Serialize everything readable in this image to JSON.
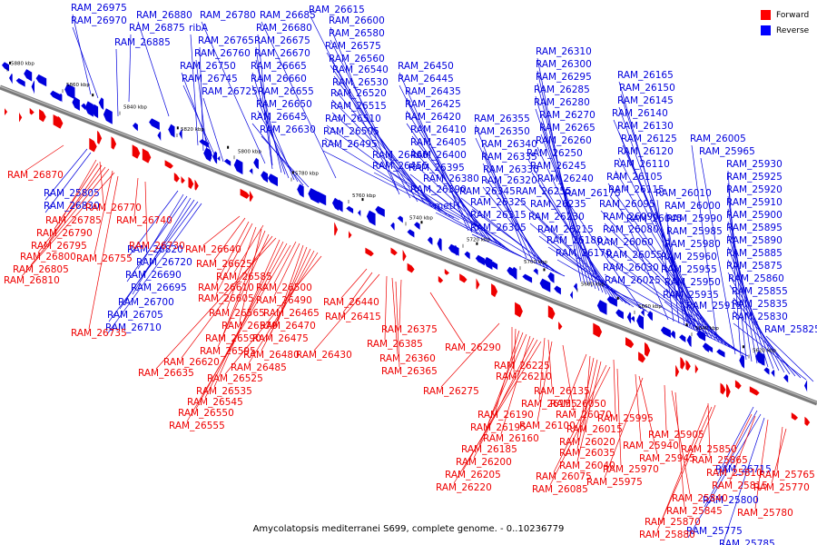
{
  "caption": "Amycolatopsis mediterranei S699, complete genome. - 0..10236779",
  "legend": [
    {
      "label": "Forward",
      "color": "#ff0000"
    },
    {
      "label": "Reverse",
      "color": "#0000ff"
    }
  ],
  "colors": {
    "forward": "#ee0000",
    "reverse": "#0000dd",
    "axis": "#7a7a7a"
  },
  "ticks": [
    "5880 kbp",
    "5860 kbp",
    "5840 kbp",
    "5820 kbp",
    "5800 kbp",
    "5780 kbp",
    "5760 kbp",
    "5740 kbp",
    "5720 kbp",
    "5700 kbp",
    "5680 kbp",
    "5660 kbp",
    "5640 kbp",
    "5620 kbp"
  ],
  "reverse_labels": [
    "RAM_26975",
    "RAM_26970",
    "RAM_26880",
    "RAM_26780",
    "RAM_26685",
    "RAM_26615",
    "RAM_26875",
    "ribA",
    "RAM_26600",
    "RAM_26680",
    "RAM_26580",
    "RAM_26885",
    "RAM_26765",
    "RAM_26675",
    "RAM_26575",
    "RAM_26760",
    "RAM_26670",
    "RAM_26560",
    "RAM_26750",
    "RAM_26665",
    "RAM_26540",
    "RAM_26450",
    "RAM_26745",
    "RAM_26660",
    "RAM_26530",
    "RAM_26445",
    "RAM_26725",
    "RAM_26655",
    "RAM_26520",
    "RAM_26435",
    "RAM_26650",
    "RAM_26515",
    "RAM_26425",
    "RAM_26645",
    "RAM_26510",
    "RAM_26420",
    "RAM_26630",
    "RAM_26505",
    "RAM_26410",
    "RAM_26495",
    "RAM_26405",
    "RAM_26460",
    "RAM_26400",
    "RAM_26455",
    "RAM_26395",
    "RAM_26380",
    "RAM_26390",
    "metH",
    "RAM_26310",
    "RAM_26300",
    "RAM_26295",
    "RAM_26285",
    "RAM_26280",
    "RAM_26270",
    "RAM_26355",
    "RAM_26265",
    "RAM_26350",
    "RAM_26260",
    "RAM_26340",
    "RAM_26250",
    "RAM_26335",
    "RAM_26245",
    "RAM_26330",
    "RAM_26240",
    "RAM_26320",
    "RAM_26175",
    "RAM_26345",
    "RAM_26255",
    "RAM_26325",
    "RAM_26235",
    "RAM_26315",
    "RAM_26230",
    "RAM_26305",
    "RAM_26215",
    "RAM_26180",
    "RAM_26170",
    "RAM_26165",
    "RAM_26150",
    "RAM_26145",
    "RAM_26140",
    "RAM_26130",
    "RAM_26125",
    "RAM_26120",
    "RAM_26110",
    "RAM_26105",
    "RAM_26115",
    "RAM_26095",
    "RAM_26090",
    "RAM_26080",
    "RAM_26060",
    "RAM_26055",
    "RAM_26030",
    "RAM_26025",
    "RAM_26045",
    "RAM_26010",
    "RAM_26000",
    "RAM_25990",
    "RAM_25985",
    "RAM_25980",
    "RAM_25960",
    "RAM_25955",
    "RAM_25950",
    "RAM_25935",
    "RAM_25915",
    "RAM_26005",
    "RAM_25965",
    "RAM_25930",
    "RAM_25925",
    "RAM_25920",
    "RAM_25910",
    "RAM_25900",
    "RAM_25895",
    "RAM_25890",
    "RAM_25885",
    "RAM_25875",
    "RAM_25860",
    "RAM_25855",
    "RAM_25835",
    "RAM_25830",
    "RAM_25825",
    "RAM_25805",
    "RAM_26830",
    "RAM_26820",
    "RAM_26720",
    "RAM_26690",
    "RAM_26695",
    "RAM_26700",
    "RAM_26705",
    "RAM_26710",
    "RAM_26715",
    "RAM_25800",
    "RAM_25775",
    "RAM_25785",
    "RAM_25790"
  ],
  "forward_labels": [
    "RAM_26870",
    "RAM_26785",
    "RAM_26770",
    "RAM_26790",
    "RAM_26740",
    "RAM_26795",
    "RAM_26730",
    "RAM_26800",
    "RAM_26755",
    "RAM_26805",
    "RAM_26810",
    "RAM_26735",
    "RAM_26640",
    "RAM_26625",
    "RAM_26585",
    "RAM_26610",
    "RAM_26605",
    "RAM_26500",
    "RAM_26490",
    "RAM_26565",
    "RAM_26465",
    "RAM_26440",
    "RAM_26570",
    "RAM_26470",
    "RAM_26415",
    "RAM_26590",
    "RAM_26475",
    "RAM_26375",
    "RAM_26595",
    "RAM_26480",
    "RAM_26430",
    "RAM_26385",
    "RAM_26620",
    "RAM_26485",
    "RAM_26360",
    "RAM_26290",
    "RAM_26635",
    "RAM_26525",
    "RAM_26365",
    "RAM_26535",
    "RAM_26545",
    "RAM_26550",
    "RAM_26555",
    "RAM_26225",
    "RAM_26210",
    "RAM_26275",
    "RAM_26135",
    "RAM_26155",
    "RAM_26050",
    "RAM_26190",
    "RAM_26070",
    "RAM_26100",
    "RAM_25995",
    "RAM_26195",
    "RAM_26015",
    "RAM_26160",
    "RAM_26020",
    "RAM_26185",
    "RAM_26035",
    "RAM_25940",
    "RAM_25905",
    "RAM_26200",
    "RAM_26040",
    "RAM_25945",
    "RAM_25850",
    "RAM_25970",
    "RAM_25865",
    "RAM_26205",
    "RAM_26075",
    "RAM_25975",
    "RAM_25810",
    "RAM_25765",
    "RAM_26220",
    "RAM_26085",
    "RAM_25815",
    "RAM_25770",
    "RAM_25840",
    "RAM_25780",
    "RAM_25845",
    "RAM_25870",
    "RAM_25880"
  ]
}
